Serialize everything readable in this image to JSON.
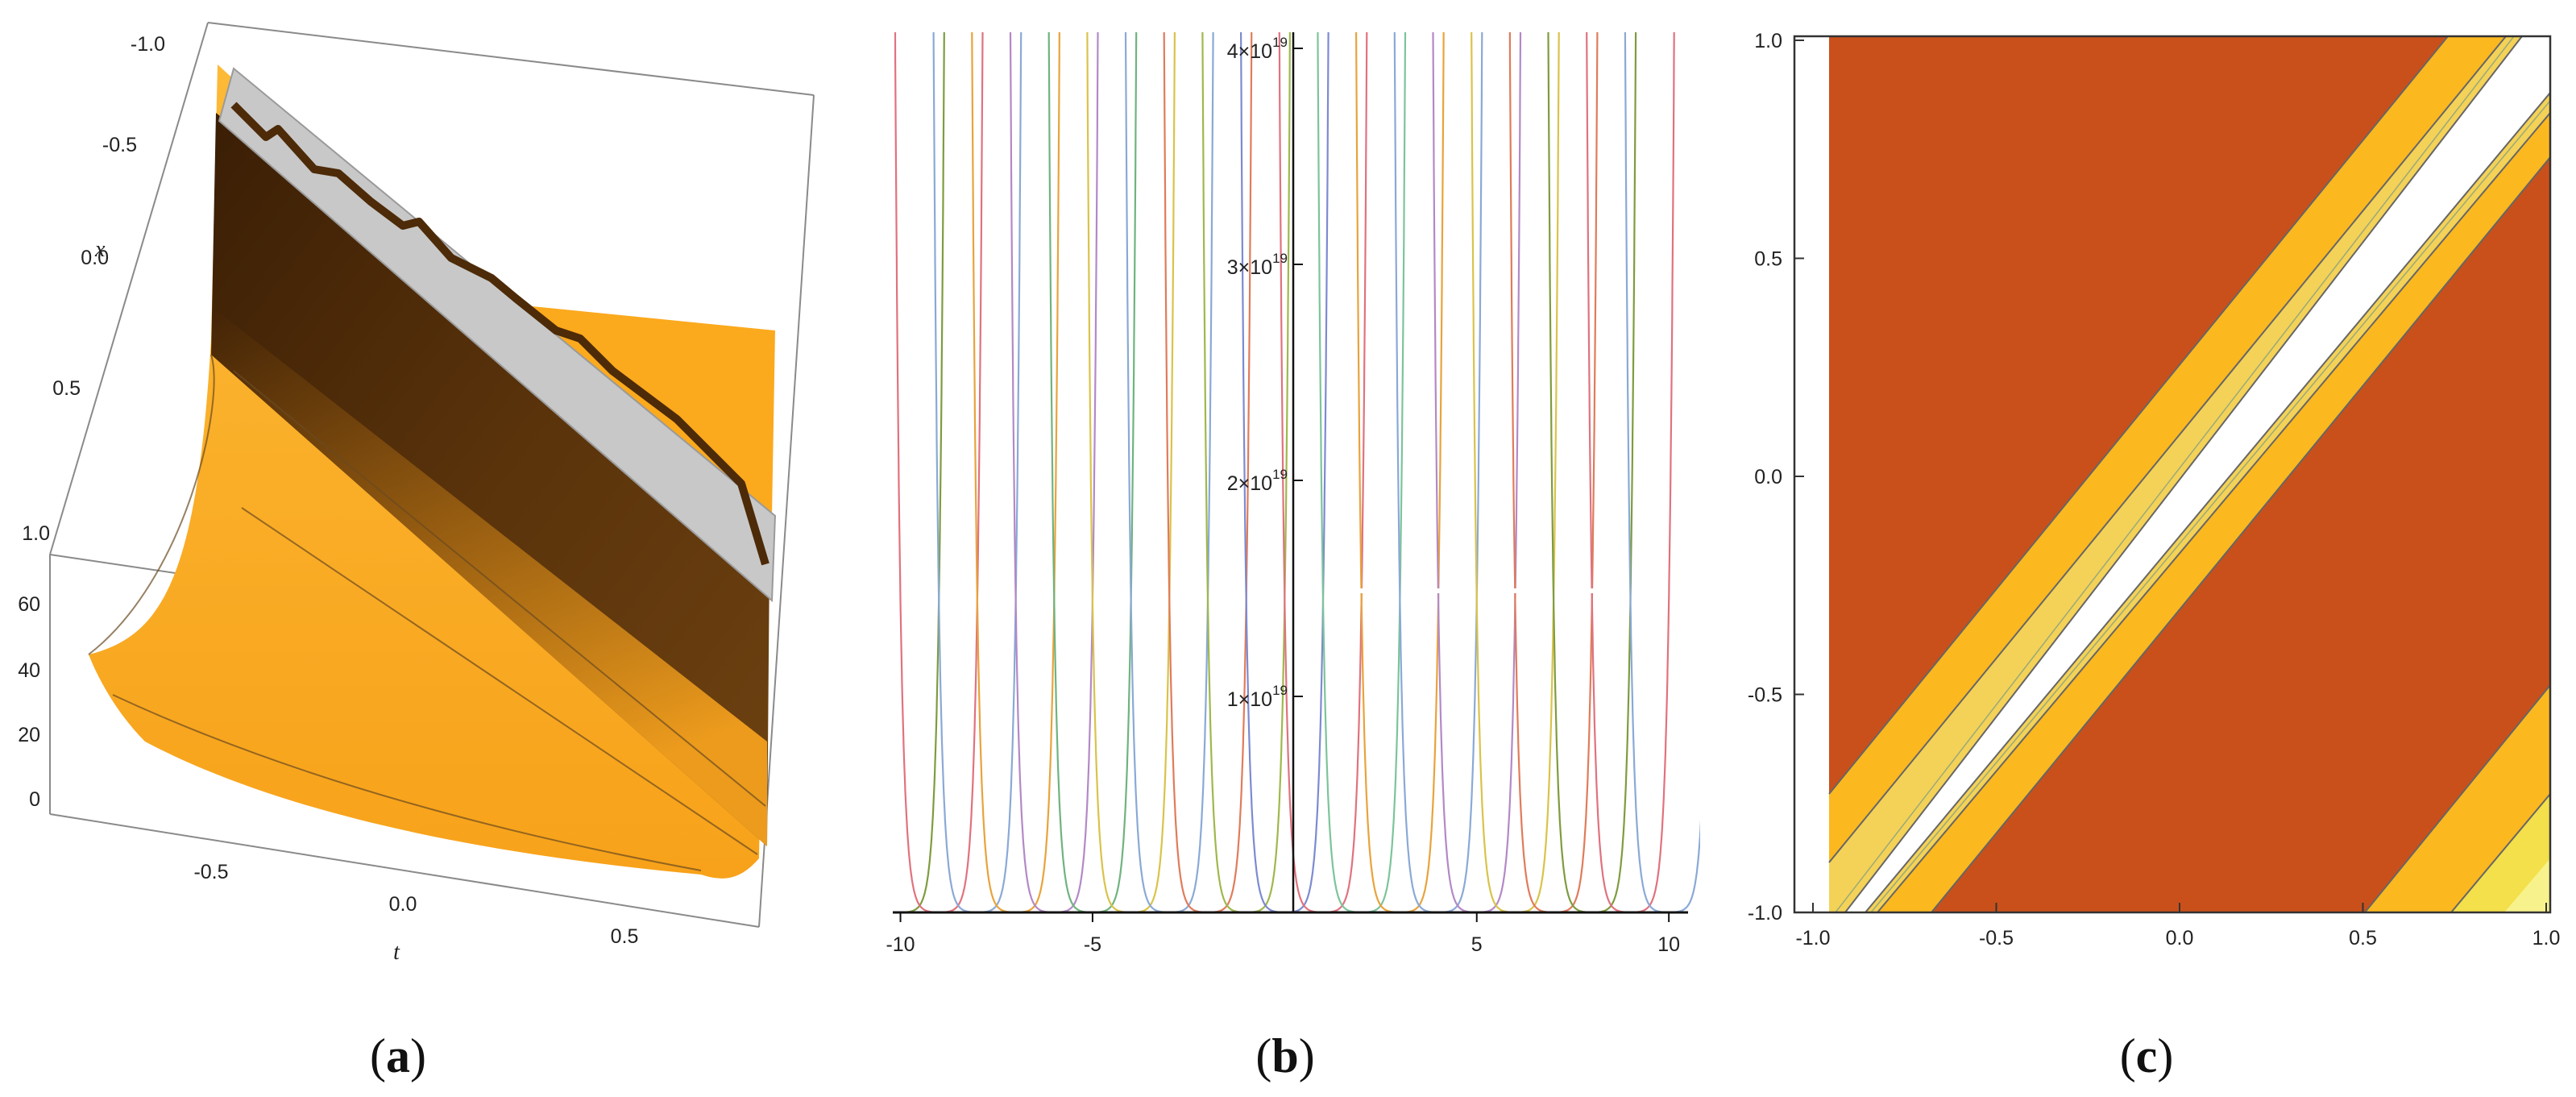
{
  "panels": [
    {
      "label_open": "(",
      "label_letter": "a",
      "label_close": ")"
    },
    {
      "label_open": "(",
      "label_letter": "b",
      "label_close": ")"
    },
    {
      "label_open": "(",
      "label_letter": "c",
      "label_close": ")"
    }
  ],
  "colors": {
    "orange": "#fba91d",
    "dark_brown": "#4d2a08",
    "gray_band": "#c8c8c8",
    "contour_red": "#c9501a",
    "contour_gold": "#fbb81f",
    "contour_yellow": "#f3e04a",
    "contour_pale": "#f8f28c"
  },
  "chart_data": [
    {
      "type": "surface3d",
      "x_axis_label": "x",
      "t_axis_label": "t",
      "x_ticks": [
        "-1.0",
        "-0.5",
        "0.0",
        "0.5",
        "1.0"
      ],
      "t_ticks": [
        "-0.5",
        "0.0",
        "0.5"
      ],
      "z_ticks": [
        "0",
        "20",
        "40",
        "60"
      ],
      "x_range": [
        -1.0,
        1.0
      ],
      "t_range": [
        -0.75,
        0.75
      ],
      "z_range": [
        0,
        75
      ]
    },
    {
      "type": "line",
      "x_ticks": [
        "-10",
        "-5",
        "5",
        "10"
      ],
      "x_tick_values": [
        -10,
        -5,
        5,
        10
      ],
      "y_ticks": [
        {
          "base": "1×10",
          "exp": "19",
          "value": 1e+19
        },
        {
          "base": "2×10",
          "exp": "19",
          "value": 2e+19
        },
        {
          "base": "3×10",
          "exp": "19",
          "value": 3e+19
        },
        {
          "base": "4×10",
          "exp": "19",
          "value": 4e+19
        }
      ],
      "xlim": [
        -10.2,
        10.5
      ],
      "ylim": [
        0,
        4e+19
      ],
      "series_centers": [
        -10,
        -9,
        -8,
        -7,
        -6,
        -5,
        -4,
        -3,
        -2,
        -1,
        0,
        1,
        2,
        3,
        4,
        5,
        6,
        7,
        8,
        9,
        10
      ],
      "series_colors": [
        "#7e9c3f",
        "#e0727e",
        "#8aa9d6",
        "#e8a33c",
        "#b389c6",
        "#6fb37f",
        "#d9c34a",
        "#8aa9d6",
        "#e07b5a",
        "#9fb84c",
        "#7d8ad0",
        "#e0727e",
        "#7cc49a",
        "#e8a33c",
        "#8aa9d6",
        "#b389c6",
        "#d9c34a",
        "#e07b5a",
        "#7e9c3f",
        "#e0727e",
        "#8aa9d6"
      ]
    },
    {
      "type": "contour",
      "x_ticks": [
        "-1.0",
        "-0.5",
        "0.0",
        "0.5",
        "1.0"
      ],
      "y_ticks": [
        "-1.0",
        "-0.5",
        "0.0",
        "0.5",
        "1.0"
      ],
      "xlim": [
        -1.0,
        1.0
      ],
      "ylim": [
        -1.0,
        1.0
      ]
    }
  ]
}
